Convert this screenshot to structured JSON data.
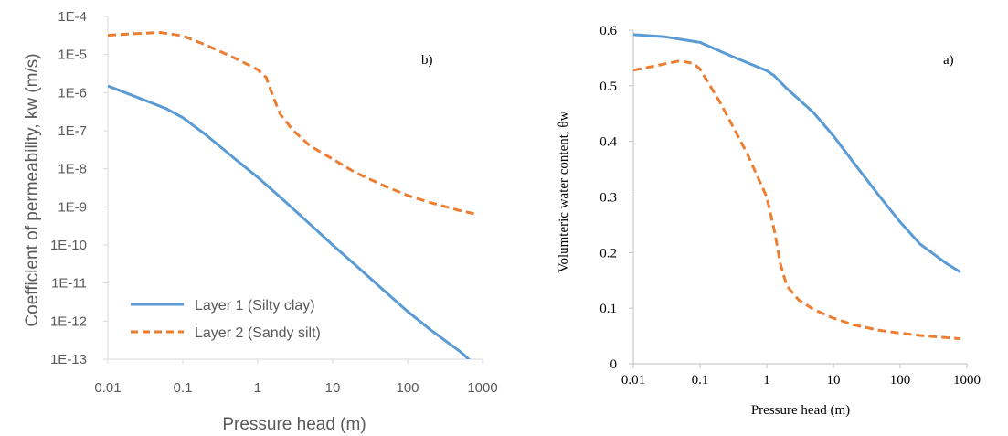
{
  "chart_data": [
    {
      "type": "line",
      "panel_label": "b)",
      "title": "",
      "xlabel": "Pressure head (m)",
      "ylabel": "Coefficient of permeability, kw (m/s)",
      "x_scale": "log",
      "y_scale": "log",
      "xlim": [
        0.01,
        1000
      ],
      "ylim": [
        1e-13,
        0.0001
      ],
      "x_ticks": [
        "0.01",
        "0.1",
        "1",
        "10",
        "100",
        "1000"
      ],
      "y_ticks": [
        "1E-13",
        "1E-12",
        "1E-11",
        "1E-10",
        "1E-9",
        "1E-8",
        "1E-7",
        "1E-6",
        "1E-5",
        "1E-4"
      ],
      "grid": false,
      "legend_position": "bottom-left",
      "series": [
        {
          "name": "Layer 1 (Silty clay)",
          "color": "#5b9bd5",
          "dash": "solid",
          "x": [
            0.01,
            0.03,
            0.06,
            0.1,
            0.2,
            0.5,
            1,
            2,
            5,
            10,
            20,
            50,
            100,
            200,
            500,
            800
          ],
          "y": [
            1.5e-06,
            6.5e-07,
            3.8e-07,
            2.2e-07,
            8e-08,
            1.8e-08,
            6e-09,
            1.8e-09,
            3.5e-10,
            1e-10,
            3e-11,
            6e-12,
            1.8e-12,
            6e-13,
            1.6e-13,
            7e-14
          ]
        },
        {
          "name": "Layer 2 (Sandy silt)",
          "color": "#ed7d31",
          "dash": "dashed",
          "x": [
            0.01,
            0.02,
            0.05,
            0.1,
            0.2,
            0.5,
            1,
            1.3,
            1.6,
            2,
            3,
            5,
            10,
            20,
            50,
            100,
            200,
            500,
            800
          ],
          "y": [
            3.2e-05,
            3.5e-05,
            3.8e-05,
            3.1e-05,
            1.8e-05,
            8e-06,
            4e-06,
            2.5e-06,
            8e-07,
            2.7e-07,
            1e-07,
            4e-08,
            1.8e-08,
            8e-09,
            3.5e-09,
            2e-09,
            1.3e-09,
            8e-10,
            6.5e-10
          ]
        }
      ]
    },
    {
      "type": "line",
      "panel_label": "a)",
      "title": "",
      "xlabel": "Pressure head (m)",
      "ylabel": "Volumteric water content, θw",
      "x_scale": "log",
      "y_scale": "linear",
      "xlim": [
        0.01,
        1000
      ],
      "ylim": [
        0,
        0.6
      ],
      "x_ticks": [
        "0.01",
        "0.1",
        "1",
        "10",
        "100",
        "1000"
      ],
      "y_ticks": [
        "0",
        "0.1",
        "0.2",
        "0.3",
        "0.4",
        "0.5",
        "0.6"
      ],
      "grid": false,
      "legend_position": "none",
      "series": [
        {
          "color": "#5b9bd5",
          "dash": "solid",
          "x": [
            0.01,
            0.03,
            0.1,
            0.3,
            1,
            1.3,
            2,
            5,
            10,
            20,
            50,
            100,
            200,
            500,
            800
          ],
          "y": [
            0.592,
            0.588,
            0.578,
            0.553,
            0.527,
            0.518,
            0.495,
            0.452,
            0.41,
            0.362,
            0.3,
            0.255,
            0.215,
            0.18,
            0.165
          ]
        },
        {
          "color": "#ed7d31",
          "dash": "dashed",
          "x": [
            0.01,
            0.02,
            0.05,
            0.08,
            0.1,
            0.2,
            0.5,
            1,
            1.3,
            1.6,
            2,
            3,
            5,
            10,
            20,
            50,
            100,
            200,
            500,
            800
          ],
          "y": [
            0.528,
            0.535,
            0.545,
            0.54,
            0.53,
            0.47,
            0.38,
            0.3,
            0.24,
            0.18,
            0.14,
            0.115,
            0.098,
            0.082,
            0.07,
            0.06,
            0.055,
            0.051,
            0.047,
            0.045
          ]
        }
      ]
    }
  ]
}
